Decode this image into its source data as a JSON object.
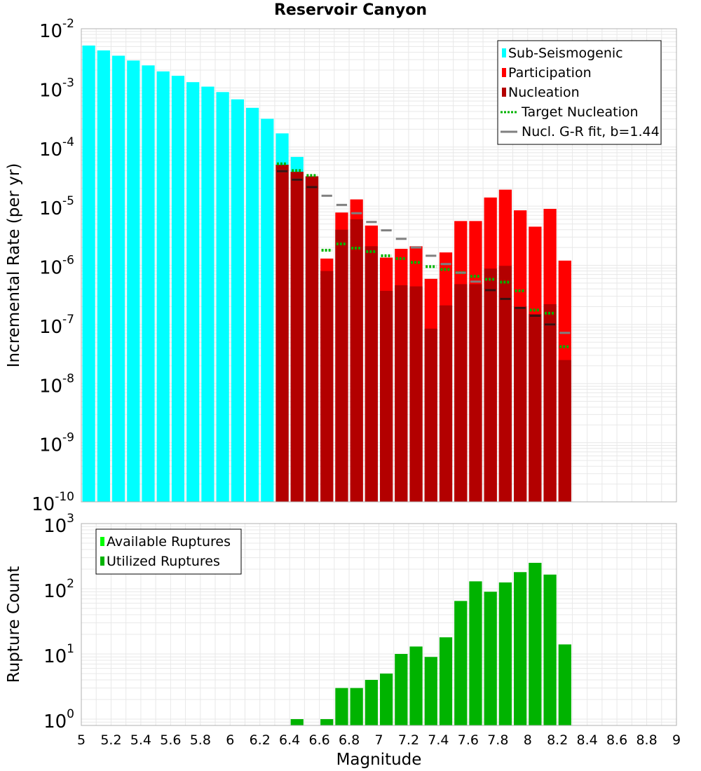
{
  "chart_data": [
    {
      "type": "bar",
      "title": "Reservoir Canyon",
      "xlabel": "",
      "ylabel": "Incremental Rate (per yr)",
      "yscale": "log",
      "ylim": [
        1e-10,
        0.01
      ],
      "xlim": [
        5.0,
        9.0
      ],
      "ytick_exponents": [
        -2,
        -3,
        -4,
        -5,
        -6,
        -7,
        -8,
        -9,
        -10
      ],
      "bin_width": 0.1,
      "legend": {
        "location": "top-right",
        "entries": [
          {
            "label": "Sub-Seismogenic",
            "color": "#00ffff",
            "kind": "bar"
          },
          {
            "label": "Participation",
            "color": "#ff0000",
            "kind": "bar"
          },
          {
            "label": "Nucleation",
            "color": "#b30000",
            "kind": "bar"
          },
          {
            "label": "Target Nucleation",
            "color": "#00b300",
            "kind": "dotted"
          },
          {
            "label": "Nucl. G-R fit, b=1.44",
            "color": "#808080",
            "kind": "line"
          }
        ]
      },
      "series": [
        {
          "name": "Sub-Seismogenic",
          "color": "#00ffff",
          "x": [
            5.05,
            5.15,
            5.25,
            5.35,
            5.45,
            5.55,
            5.65,
            5.75,
            5.85,
            5.95,
            6.05,
            6.15,
            6.25,
            6.35,
            6.45,
            6.55
          ],
          "values": [
            0.0052,
            0.0043,
            0.0035,
            0.0029,
            0.0024,
            0.0019,
            0.0016,
            0.00125,
            0.00105,
            0.00085,
            0.00064,
            0.00046,
            0.0003,
            0.00017,
            6.8e-05,
            3.2e-05
          ]
        },
        {
          "name": "Participation",
          "color": "#ff0000",
          "x": [
            6.35,
            6.45,
            6.55,
            6.65,
            6.75,
            6.85,
            6.95,
            7.05,
            7.15,
            7.25,
            7.35,
            7.45,
            7.55,
            7.65,
            7.75,
            7.85,
            7.95,
            8.05,
            8.15,
            8.25
          ],
          "values": [
            5e-05,
            3.8e-05,
            3.2e-05,
            1.3e-06,
            7.8e-06,
            1.3e-05,
            4.7e-06,
            1.35e-06,
            1.9e-06,
            2.1e-06,
            5.9e-07,
            1.65e-06,
            5.6e-06,
            5.6e-06,
            1.4e-05,
            1.9e-05,
            8.5e-06,
            4.5e-06,
            9e-06,
            1.2e-06
          ]
        },
        {
          "name": "Nucleation",
          "color": "#b30000",
          "x": [
            6.35,
            6.45,
            6.55,
            6.65,
            6.75,
            6.85,
            6.95,
            7.05,
            7.15,
            7.25,
            7.35,
            7.45,
            7.55,
            7.65,
            7.75,
            7.85,
            7.95,
            8.05,
            8.15,
            8.25
          ],
          "values": [
            5e-05,
            3.8e-05,
            3.2e-05,
            8e-07,
            4e-06,
            6e-06,
            2.1e-06,
            3.7e-07,
            4.6e-07,
            4.4e-07,
            8.5e-08,
            2.1e-07,
            4.8e-07,
            4.8e-07,
            8.8e-07,
            9.8e-07,
            2e-07,
            1.5e-07,
            2.2e-07,
            2.5e-08
          ]
        },
        {
          "name": "Target Nucleation",
          "color": "#00b300",
          "x": [
            6.35,
            6.45,
            6.55,
            6.65,
            6.75,
            6.85,
            6.95,
            7.05,
            7.15,
            7.25,
            7.35,
            7.45,
            7.55,
            7.65,
            7.75,
            7.85,
            7.95,
            8.05,
            8.15,
            8.25
          ],
          "values": [
            5.2e-05,
            4e-05,
            3.3e-05,
            1.8e-06,
            2.3e-06,
            1.95e-06,
            1.7e-06,
            1.45e-06,
            1.3e-06,
            1.12e-06,
            9.5e-07,
            8.5e-07,
            7.5e-07,
            6.5e-07,
            5.8e-07,
            5.2e-07,
            3.7e-07,
            1.75e-07,
            1.55e-07,
            4.2e-08
          ]
        },
        {
          "name": "Nucl. G-R fit, b=1.44",
          "color": "#808080",
          "x": [
            6.35,
            6.45,
            6.55,
            6.65,
            6.75,
            6.85,
            6.95,
            7.05,
            7.15,
            7.25,
            7.35,
            7.45,
            7.55,
            7.65,
            7.75,
            7.85,
            7.95,
            8.05,
            8.15,
            8.25
          ],
          "values": [
            3.9e-05,
            2.8e-05,
            2.1e-05,
            1.5e-05,
            1.05e-05,
            7.6e-06,
            5.4e-06,
            3.9e-06,
            2.8e-06,
            2e-06,
            1.45e-06,
            1.05e-06,
            7.5e-07,
            5.3e-07,
            3.8e-07,
            2.7e-07,
            1.9e-07,
            1.4e-07,
            1e-07,
            7.2e-08
          ]
        }
      ]
    },
    {
      "type": "bar",
      "title": "",
      "xlabel": "Magnitude",
      "ylabel": "Rupture Count",
      "yscale": "log",
      "ylim": [
        0.8,
        1000
      ],
      "xlim": [
        5.0,
        9.0
      ],
      "ytick_exponents": [
        3,
        2,
        1,
        0
      ],
      "xticks": [
        "5",
        "5.2",
        "5.4",
        "5.6",
        "5.8",
        "6",
        "6.2",
        "6.4",
        "6.6",
        "6.8",
        "7",
        "7.2",
        "7.4",
        "7.6",
        "7.8",
        "8",
        "8.2",
        "8.4",
        "8.6",
        "8.8",
        "9"
      ],
      "bin_width": 0.1,
      "legend": {
        "location": "top-left",
        "entries": [
          {
            "label": "Available Ruptures",
            "color": "#00ff00",
            "kind": "bar"
          },
          {
            "label": "Utilized Ruptures",
            "color": "#00b300",
            "kind": "bar"
          }
        ]
      },
      "series": [
        {
          "name": "Utilized Ruptures",
          "color": "#00b300",
          "x": [
            6.45,
            6.65,
            6.75,
            6.85,
            6.95,
            7.05,
            7.15,
            7.25,
            7.35,
            7.45,
            7.55,
            7.65,
            7.75,
            7.85,
            7.95,
            8.05,
            8.15,
            8.25
          ],
          "values": [
            1,
            1,
            3,
            3,
            4,
            5,
            10,
            13,
            9,
            18,
            65,
            130,
            90,
            125,
            180,
            250,
            165,
            14
          ]
        }
      ]
    }
  ]
}
